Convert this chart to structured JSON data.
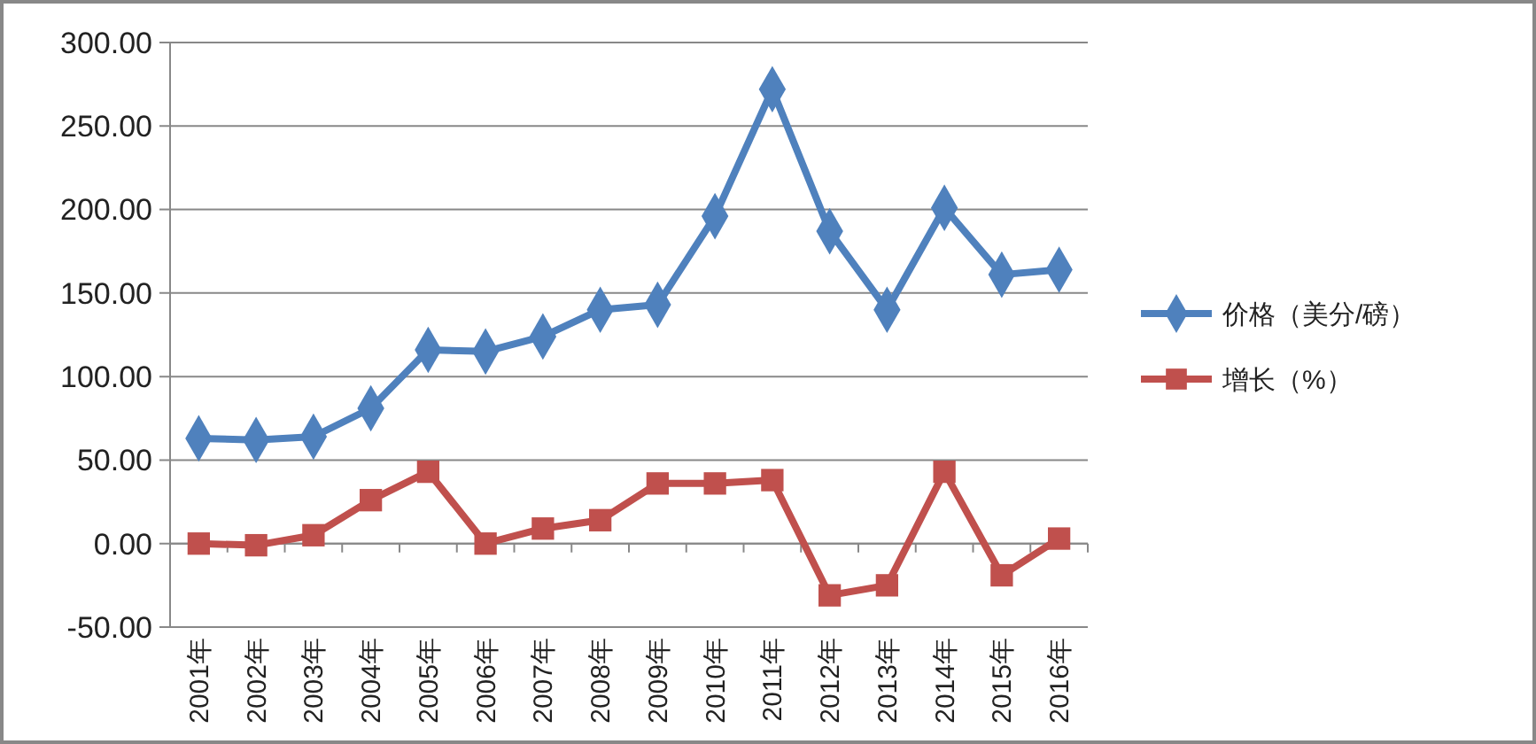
{
  "chart_data": {
    "type": "line",
    "categories": [
      "2001年",
      "2002年",
      "2003年",
      "2004年",
      "2005年",
      "2006年",
      "2007年",
      "2008年",
      "2009年",
      "2010年",
      "2011年",
      "2012年",
      "2013年",
      "2014年",
      "2015年",
      "2016年"
    ],
    "series": [
      {
        "name": "价格（美分/磅）",
        "color": "#4f81bd",
        "marker": "diamond",
        "values": [
          63,
          62,
          64,
          81,
          116,
          115,
          124,
          140,
          143,
          196,
          272,
          187,
          140,
          201,
          161,
          164
        ]
      },
      {
        "name": "增长（%）",
        "color": "#c0504d",
        "marker": "square",
        "values": [
          0,
          -1,
          5,
          26,
          43,
          0,
          9,
          14,
          36,
          36,
          38,
          -31,
          -25,
          43,
          -19,
          3
        ]
      }
    ],
    "ylim": [
      -50,
      300
    ],
    "yticks": [
      {
        "value": -50,
        "label": "-50.00"
      },
      {
        "value": 0,
        "label": "0.00"
      },
      {
        "value": 50,
        "label": "50.00"
      },
      {
        "value": 100,
        "label": "100.00"
      },
      {
        "value": 150,
        "label": "150.00"
      },
      {
        "value": 200,
        "label": "200.00"
      },
      {
        "value": 250,
        "label": "250.00"
      },
      {
        "value": 300,
        "label": "300.00"
      }
    ],
    "grid": "y",
    "legend": "right"
  }
}
